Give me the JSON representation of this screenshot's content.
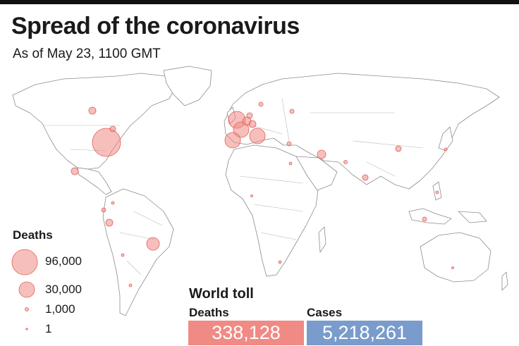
{
  "title": "Spread of the coronavirus",
  "subtitle": "As of May 23, 1100 GMT",
  "legend": {
    "title": "Deaths",
    "items": [
      {
        "label": "96,000",
        "value": 96000
      },
      {
        "label": "30,000",
        "value": 30000
      },
      {
        "label": "1,000",
        "value": 1000
      },
      {
        "label": "1",
        "value": 1
      }
    ]
  },
  "world_toll": {
    "title": "World toll",
    "deaths_label": "Deaths",
    "deaths_value": "338,128",
    "cases_label": "Cases",
    "cases_value": "5,218,261"
  },
  "colors": {
    "bubble": "#f08a84",
    "deaths_box": "#f08a84",
    "cases_box": "#7a9ccc"
  }
}
